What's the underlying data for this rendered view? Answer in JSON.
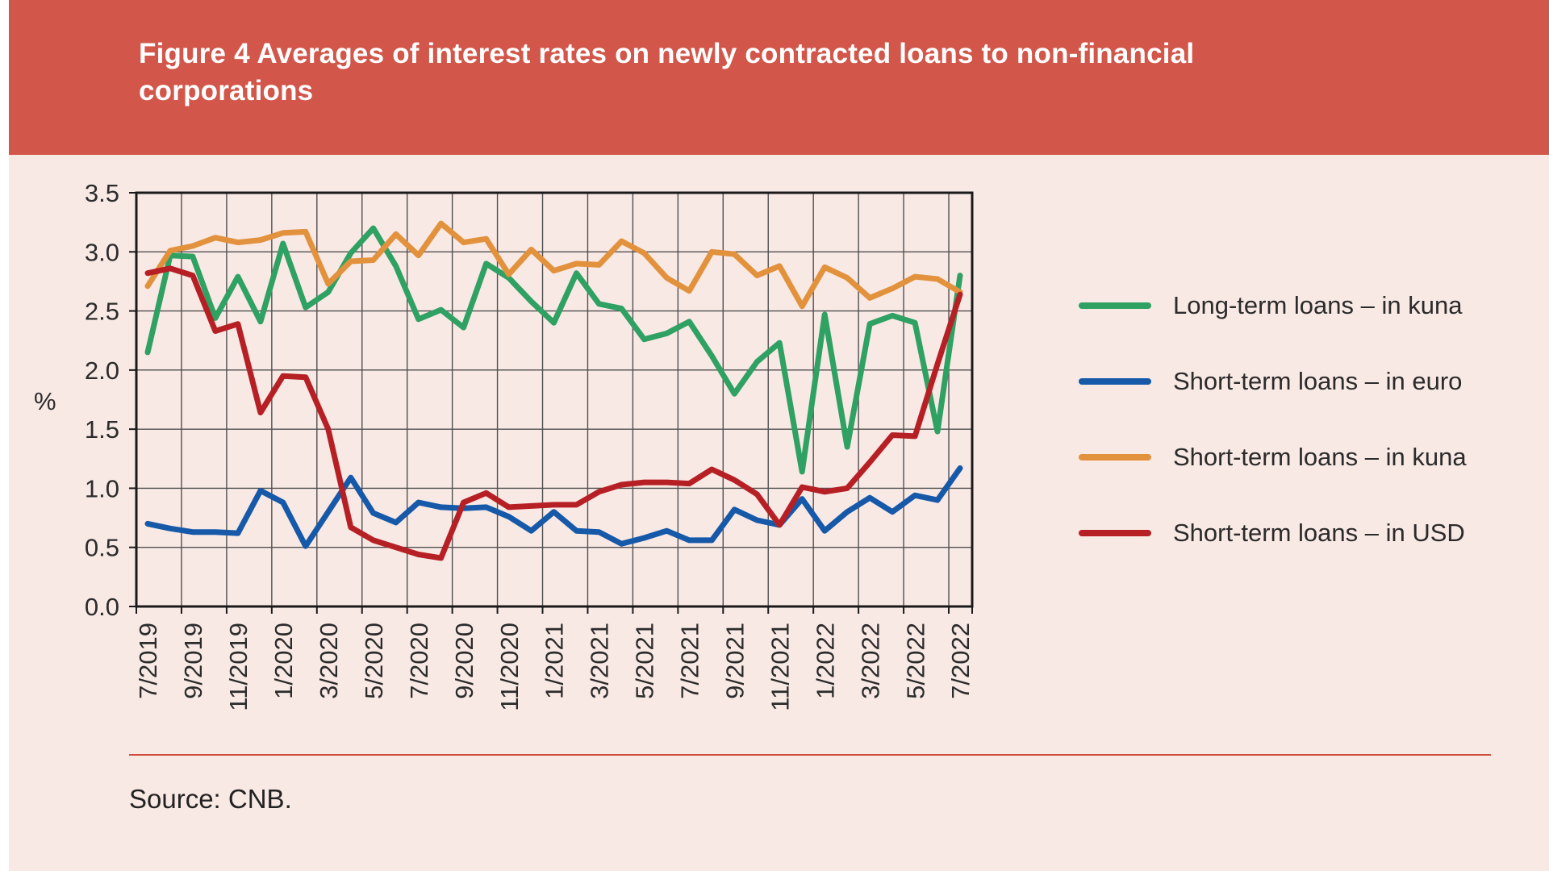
{
  "page": {
    "background": "#f9e9e5",
    "left_margin_color": "#ffffff"
  },
  "header": {
    "title_line1": "Figure 4 Averages of interest rates on newly contracted loans to non-financial",
    "title_line2": "corporations",
    "background": "#d2564a",
    "text_color": "#ffffff"
  },
  "source": {
    "label": "Source: CNB."
  },
  "divider_color": "#cc4f3d",
  "chart_data": {
    "type": "line",
    "title": "Averages of interest rates on newly contracted loans to non-financial corporations",
    "xlabel": "",
    "ylabel": "%",
    "ylim": [
      0,
      3.5
    ],
    "ytick_step": 0.5,
    "grid": true,
    "legend_position": "right",
    "y_tick_labels": [
      "3.5",
      "3.0",
      "2.5",
      "2.0",
      "1.5",
      "1.0",
      "0.5",
      "0.0"
    ],
    "x_tick_labels": [
      "7/2019",
      "9/2019",
      "11/2019",
      "1/2020",
      "3/2020",
      "5/2020",
      "7/2020",
      "9/2020",
      "11/2020",
      "1/2021",
      "3/2021",
      "5/2021",
      "7/2021",
      "9/2021",
      "11/2021",
      "1/2022",
      "3/2022",
      "5/2022",
      "7/2022"
    ],
    "x": [
      "7/2019",
      "8/2019",
      "9/2019",
      "10/2019",
      "11/2019",
      "12/2019",
      "1/2020",
      "2/2020",
      "3/2020",
      "4/2020",
      "5/2020",
      "6/2020",
      "7/2020",
      "8/2020",
      "9/2020",
      "10/2020",
      "11/2020",
      "12/2020",
      "1/2021",
      "2/2021",
      "3/2021",
      "4/2021",
      "5/2021",
      "6/2021",
      "7/2021",
      "8/2021",
      "9/2021",
      "10/2021",
      "11/2021",
      "12/2021",
      "1/2022",
      "2/2022",
      "3/2022",
      "4/2022",
      "5/2022",
      "6/2022",
      "7/2022"
    ],
    "series": [
      {
        "name": "Long-term loans – in kuna",
        "color": "#2fa163",
        "values": [
          2.15,
          2.97,
          2.96,
          2.44,
          2.79,
          2.41,
          3.07,
          2.53,
          2.66,
          2.99,
          3.2,
          2.88,
          2.43,
          2.51,
          2.36,
          2.9,
          2.78,
          2.58,
          2.4,
          2.82,
          2.56,
          2.52,
          2.26,
          2.31,
          2.41,
          2.12,
          1.8,
          2.07,
          2.23,
          1.14,
          2.47,
          1.35,
          2.39,
          2.46,
          2.4,
          1.48,
          2.8
        ]
      },
      {
        "name": "Short-term loans – in euro",
        "color": "#1659a9",
        "values": [
          0.7,
          0.66,
          0.63,
          0.63,
          0.62,
          0.98,
          0.88,
          0.51,
          0.8,
          1.09,
          0.79,
          0.71,
          0.88,
          0.84,
          0.83,
          0.84,
          0.76,
          0.64,
          0.8,
          0.64,
          0.63,
          0.53,
          0.58,
          0.64,
          0.56,
          0.56,
          0.82,
          0.73,
          0.69,
          0.91,
          0.64,
          0.8,
          0.92,
          0.8,
          0.94,
          0.9,
          1.17
        ]
      },
      {
        "name": "Short-term loans – in kuna",
        "color": "#e2923d",
        "values": [
          2.71,
          3.01,
          3.05,
          3.12,
          3.08,
          3.1,
          3.16,
          3.17,
          2.73,
          2.92,
          2.93,
          3.15,
          2.97,
          3.24,
          3.08,
          3.11,
          2.81,
          3.02,
          2.84,
          2.9,
          2.89,
          3.09,
          2.99,
          2.78,
          2.67,
          3.0,
          2.98,
          2.8,
          2.88,
          2.54,
          2.87,
          2.78,
          2.61,
          2.69,
          2.79,
          2.77,
          2.66
        ]
      },
      {
        "name": "Short-term loans – in USD",
        "color": "#b62025",
        "values": [
          2.82,
          2.86,
          2.8,
          2.33,
          2.39,
          1.64,
          1.95,
          1.94,
          1.5,
          0.67,
          0.56,
          0.5,
          0.44,
          0.41,
          0.88,
          0.96,
          0.84,
          0.85,
          0.86,
          0.86,
          0.97,
          1.03,
          1.05,
          1.05,
          1.04,
          1.16,
          1.07,
          0.95,
          0.69,
          1.01,
          0.97,
          1.0,
          1.22,
          1.45,
          1.44,
          2.05,
          2.64
        ]
      }
    ]
  }
}
